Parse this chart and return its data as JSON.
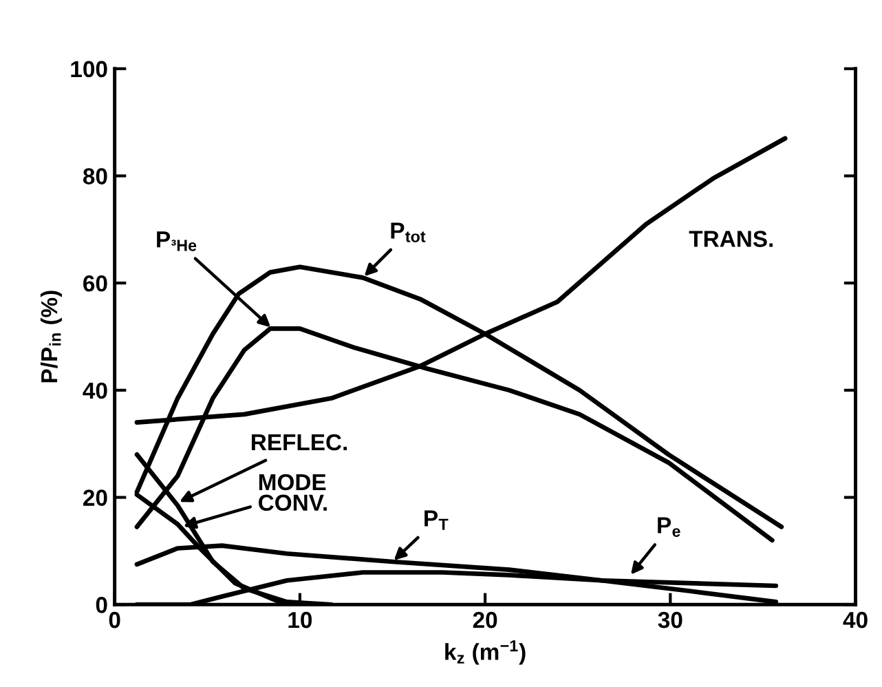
{
  "chart_data": {
    "type": "line",
    "xlabel": "k$_{z}$ (m$^{−1}$)",
    "ylabel": "P/P$_{in}$ (%)",
    "xlim": [
      0,
      40
    ],
    "ylim": [
      0,
      100
    ],
    "xticks": [
      0,
      10,
      20,
      30,
      40
    ],
    "yticks": [
      0,
      20,
      40,
      60,
      80,
      100
    ],
    "grid": false,
    "legend": false,
    "marker": "none",
    "line_style": "solid",
    "series": [
      {
        "color": "#000000",
        "x": [
          1.2,
          3.4,
          5.3,
          6.7,
          8.4,
          10,
          13.4,
          16.5,
          20,
          25.1,
          29.9,
          36
        ],
        "values": [
          21,
          38.5,
          50.5,
          58,
          62,
          63,
          61,
          57,
          50.5,
          40,
          28,
          14.5
        ]
      },
      {
        "color": "#000000",
        "x": [
          1.2,
          3.4,
          5.3,
          7,
          8.4,
          10,
          12.9,
          16.9,
          21.3,
          25.1,
          29.9,
          35.5
        ],
        "values": [
          14.5,
          24,
          38.5,
          47.5,
          51.5,
          51.5,
          48,
          44,
          40,
          35.5,
          26.5,
          12
        ]
      },
      {
        "color": "#000000",
        "x": [
          1.2,
          7,
          11.7,
          16.5,
          20,
          23.9,
          28.7,
          32.3,
          36.2
        ],
        "values": [
          34,
          35.5,
          38.5,
          44.5,
          50.5,
          56.5,
          71,
          79.5,
          87
        ]
      },
      {
        "color": "#000000",
        "x": [
          1.2,
          3.4,
          5.3,
          7,
          9.3,
          11.7
        ],
        "values": [
          28,
          18.5,
          8,
          3,
          0.5,
          0
        ]
      },
      {
        "color": "#000000",
        "x": [
          1.2,
          3.4,
          4.6,
          6.5,
          8.9,
          10.5
        ],
        "values": [
          20.5,
          15,
          10.5,
          4,
          0.5,
          0
        ]
      },
      {
        "color": "#000000",
        "x": [
          1.2,
          3.4,
          5.8,
          9.3,
          15,
          21.3,
          26.3,
          35.7
        ],
        "values": [
          7.5,
          10.5,
          11,
          9.5,
          8,
          6.5,
          4.5,
          3.5
        ]
      },
      {
        "color": "#000000",
        "x": [
          1.2,
          4.1,
          5.8,
          9.3,
          13.4,
          17.7,
          21.3,
          26.3,
          31.1,
          35.7
        ],
        "values": [
          0,
          0,
          1.5,
          4.5,
          6,
          6,
          5.5,
          4.5,
          2.5,
          0.5
        ]
      }
    ],
    "annotations": [
      {
        "text": "P$_{tot}$",
        "x": 13.4,
        "y": 61
      },
      {
        "text": "P$_{³He}$",
        "x": 8.5,
        "y": 51.5
      },
      {
        "text": "TRANS.",
        "x": 31,
        "y": 77
      },
      {
        "text": "REFLEC.",
        "x": 3.4,
        "y": 19
      },
      {
        "text": "MODE\nCONV.",
        "x": 3.6,
        "y": 14.5
      },
      {
        "text": "P$_{T}$",
        "x": 15,
        "y": 8
      },
      {
        "text": "P$_{e}$",
        "x": 27.8,
        "y": 5.3
      }
    ]
  }
}
